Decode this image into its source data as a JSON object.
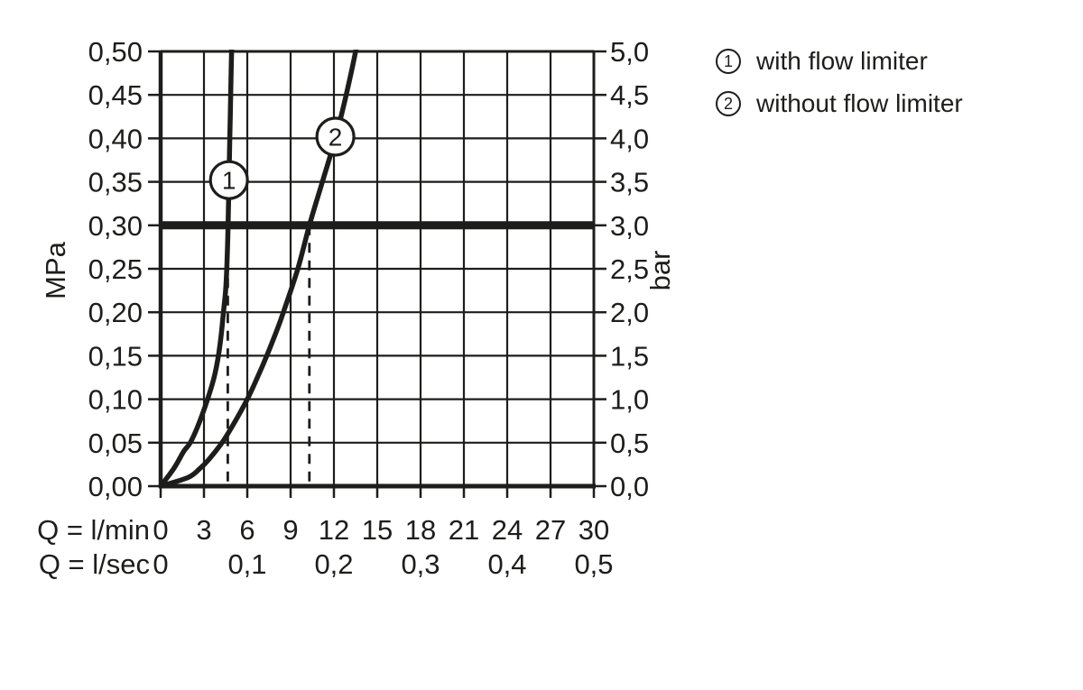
{
  "page": {
    "colors": {
      "ink": "#1d1d1b",
      "background": "#ffffff"
    }
  },
  "legend": {
    "items": [
      {
        "marker": "1",
        "label": "with flow limiter"
      },
      {
        "marker": "2",
        "label": "without flow limiter"
      }
    ]
  },
  "chart_data": {
    "type": "line",
    "title": "",
    "grid": "on",
    "legend_position": "top-right",
    "x_axis": {
      "row_min_label": "Q = l/min",
      "row_sec_label": "Q = l/sec",
      "range_lmin": [
        0,
        30
      ],
      "grid_step_lmin": 3,
      "ticks_lmin": [
        {
          "v": 0,
          "t": "0"
        },
        {
          "v": 3,
          "t": "3"
        },
        {
          "v": 6,
          "t": "6"
        },
        {
          "v": 9,
          "t": "9"
        },
        {
          "v": 12,
          "t": "12"
        },
        {
          "v": 15,
          "t": "15"
        },
        {
          "v": 18,
          "t": "18"
        },
        {
          "v": 21,
          "t": "21"
        },
        {
          "v": 24,
          "t": "24"
        },
        {
          "v": 27,
          "t": "27"
        },
        {
          "v": 30,
          "t": "30"
        }
      ],
      "ticks_lsec": [
        {
          "v": 0,
          "t": "0"
        },
        {
          "v": 6,
          "t": "0,1"
        },
        {
          "v": 12,
          "t": "0,2"
        },
        {
          "v": 18,
          "t": "0,3"
        },
        {
          "v": 24,
          "t": "0,4"
        },
        {
          "v": 30,
          "t": "0,5"
        }
      ]
    },
    "y_axis_left": {
      "label": "MPa",
      "range_mpa": [
        0,
        0.5
      ],
      "ticks": [
        {
          "v": 0.0,
          "t": "0,00"
        },
        {
          "v": 0.05,
          "t": "0,05"
        },
        {
          "v": 0.1,
          "t": "0,10"
        },
        {
          "v": 0.15,
          "t": "0,15"
        },
        {
          "v": 0.2,
          "t": "0,20"
        },
        {
          "v": 0.25,
          "t": "0,25"
        },
        {
          "v": 0.3,
          "t": "0,30"
        },
        {
          "v": 0.35,
          "t": "0,35"
        },
        {
          "v": 0.4,
          "t": "0,40"
        },
        {
          "v": 0.45,
          "t": "0,45"
        },
        {
          "v": 0.5,
          "t": "0,50"
        }
      ]
    },
    "y_axis_right": {
      "label": "bar",
      "range_bar": [
        0,
        5
      ],
      "ticks": [
        {
          "v": 0.0,
          "t": "0,0"
        },
        {
          "v": 0.5,
          "t": "0,5"
        },
        {
          "v": 1.0,
          "t": "1,0"
        },
        {
          "v": 1.5,
          "t": "1,5"
        },
        {
          "v": 2.0,
          "t": "2,0"
        },
        {
          "v": 2.5,
          "t": "2,5"
        },
        {
          "v": 3.0,
          "t": "3,0"
        },
        {
          "v": 3.5,
          "t": "3,5"
        },
        {
          "v": 4.0,
          "t": "4,0"
        },
        {
          "v": 4.5,
          "t": "4,5"
        },
        {
          "v": 5.0,
          "t": "5,0"
        }
      ]
    },
    "reference_line": {
      "value_mpa": 0.3,
      "value_bar": 3.0
    },
    "dashed_guides_lmin": [
      4.65,
      10.3
    ],
    "series": [
      {
        "id": "1",
        "name": "with flow limiter",
        "marker": "1",
        "marker_at_lmin_mpa": [
          4.73,
          0.352
        ],
        "flow_at_3bar_lmin": 4.65,
        "points_lmin_mpa": [
          [
            0,
            0
          ],
          [
            0.9,
            0.02
          ],
          [
            1.6,
            0.04
          ],
          [
            2.05,
            0.05
          ],
          [
            2.6,
            0.07
          ],
          [
            3.25,
            0.1
          ],
          [
            3.7,
            0.125
          ],
          [
            4.0,
            0.15
          ],
          [
            4.2,
            0.175
          ],
          [
            4.35,
            0.2
          ],
          [
            4.5,
            0.225
          ],
          [
            4.58,
            0.25
          ],
          [
            4.63,
            0.275
          ],
          [
            4.67,
            0.3
          ],
          [
            4.73,
            0.35
          ],
          [
            4.79,
            0.4
          ],
          [
            4.85,
            0.45
          ],
          [
            4.91,
            0.5
          ],
          [
            4.94,
            0.53
          ]
        ]
      },
      {
        "id": "2",
        "name": "without flow limiter",
        "marker": "2",
        "marker_at_lmin_mpa": [
          12.1,
          0.402
        ],
        "flow_at_3bar_lmin": 10.3,
        "points_lmin_mpa": [
          [
            0,
            0
          ],
          [
            1.9,
            0.01
          ],
          [
            2.7,
            0.02
          ],
          [
            3.3,
            0.03
          ],
          [
            4.25,
            0.05
          ],
          [
            5.0,
            0.07
          ],
          [
            6.0,
            0.1
          ],
          [
            6.7,
            0.125
          ],
          [
            7.35,
            0.15
          ],
          [
            7.95,
            0.175
          ],
          [
            8.5,
            0.2
          ],
          [
            9.5,
            0.25
          ],
          [
            10.3,
            0.3
          ],
          [
            11.2,
            0.35
          ],
          [
            12.1,
            0.4
          ],
          [
            12.85,
            0.45
          ],
          [
            13.5,
            0.5
          ],
          [
            13.8,
            0.53
          ]
        ]
      }
    ]
  }
}
